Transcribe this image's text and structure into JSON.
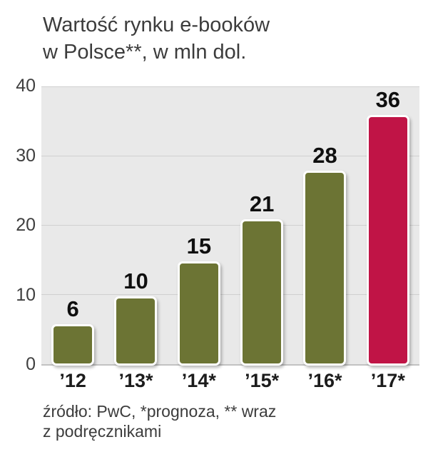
{
  "title": {
    "line1": "Wartość rynku e-booków",
    "line2": "w Polsce**, w mln dol."
  },
  "source": {
    "line1": "źródło: PwC, *prognoza, ** wraz",
    "line2": "z podręcznikami"
  },
  "chart_data": {
    "type": "bar",
    "title": "Wartość rynku e-booków w Polsce**, w mln dol.",
    "categories": [
      "’12",
      "’13*",
      "’14*",
      "’15*",
      "’16*",
      "’17*"
    ],
    "values": [
      6,
      10,
      15,
      21,
      28,
      36
    ],
    "bar_colors": [
      "#6c7434",
      "#6c7434",
      "#6c7434",
      "#6c7434",
      "#6c7434",
      "#c01446"
    ],
    "bar_color_default": "#6c7434",
    "accent_color": "#c01446",
    "xlabel": "",
    "ylabel": "",
    "ylim": [
      0,
      40
    ],
    "yticks": [
      0,
      10,
      20,
      30,
      40
    ],
    "grid": true,
    "legend": false,
    "plot_bg": "#e9e9e9"
  }
}
